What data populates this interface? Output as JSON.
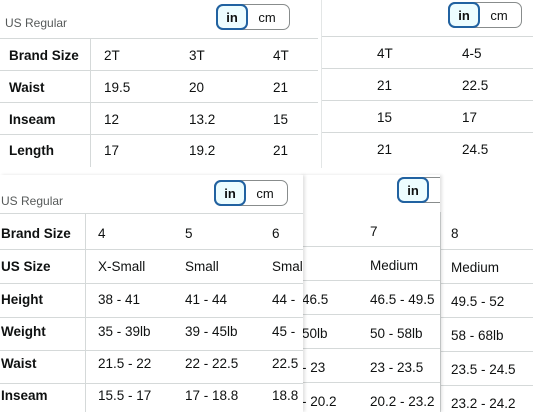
{
  "panels": {
    "top_left": {
      "label": "US Regular",
      "toggle": {
        "in": "in",
        "cm": "cm",
        "selected": "in"
      },
      "rows": [
        {
          "header": "Brand Size",
          "cells": [
            "2T",
            "3T",
            "4T"
          ]
        },
        {
          "header": "Waist",
          "cells": [
            "19.5",
            "20",
            "21"
          ]
        },
        {
          "header": "Inseam",
          "cells": [
            "12",
            "13.2",
            "15"
          ]
        },
        {
          "header": "Length",
          "cells": [
            "17",
            "19.2",
            "21"
          ]
        }
      ]
    },
    "top_right": {
      "toggle": {
        "in": "in",
        "cm": "cm",
        "selected": "in"
      },
      "rows": [
        {
          "cells": [
            "4T",
            "4-5"
          ]
        },
        {
          "cells": [
            "21",
            "22.5"
          ]
        },
        {
          "cells": [
            "15",
            "17"
          ]
        },
        {
          "cells": [
            "21",
            "24.5"
          ]
        }
      ]
    },
    "bottom_left": {
      "label": "US Regular",
      "toggle": {
        "in": "in",
        "cm": "cm",
        "selected": "in"
      },
      "rows": [
        {
          "header": "Brand Size",
          "cells": [
            "4",
            "5",
            "6"
          ]
        },
        {
          "header": "US Size",
          "cells": [
            "X-Small",
            "Small",
            "Smal"
          ]
        },
        {
          "header": "Height",
          "cells": [
            "38 - 41",
            "41 - 44",
            "44 -"
          ]
        },
        {
          "header": "Weight",
          "cells": [
            "35 - 39lb",
            "39 - 45lb",
            "45 -"
          ]
        },
        {
          "header": "Waist",
          "cells": [
            "21.5 - 22",
            "22 - 22.5",
            "22.5"
          ]
        },
        {
          "header": "Inseam",
          "cells": [
            "15.5 - 17",
            "17 - 18.8",
            "18.8"
          ]
        }
      ]
    },
    "bottom_mid": {
      "toggle": {
        "in": "in"
      },
      "rows": [
        {
          "cells": [
            "",
            "7"
          ]
        },
        {
          "cells": [
            "l",
            "Medium"
          ]
        },
        {
          "cells": [
            "46.5",
            "46.5 - 49.5"
          ]
        },
        {
          "cells": [
            "50lb",
            "50 - 58lb"
          ]
        },
        {
          "cells": "- 23|23 - 23.5"
        },
        {
          "cells": "- 20.2|20.2 - 23.2"
        }
      ]
    },
    "bottom_right": {
      "rows": [
        {
          "cells": [
            "8"
          ]
        },
        {
          "cells": [
            "Medium"
          ]
        },
        {
          "cells": [
            "49.5 - 52"
          ]
        },
        {
          "cells": [
            "58 - 68lb"
          ]
        },
        {
          "cells": [
            "23.5 - 24.5"
          ]
        },
        {
          "cells": [
            "23.2 - 24.2"
          ]
        }
      ]
    }
  }
}
